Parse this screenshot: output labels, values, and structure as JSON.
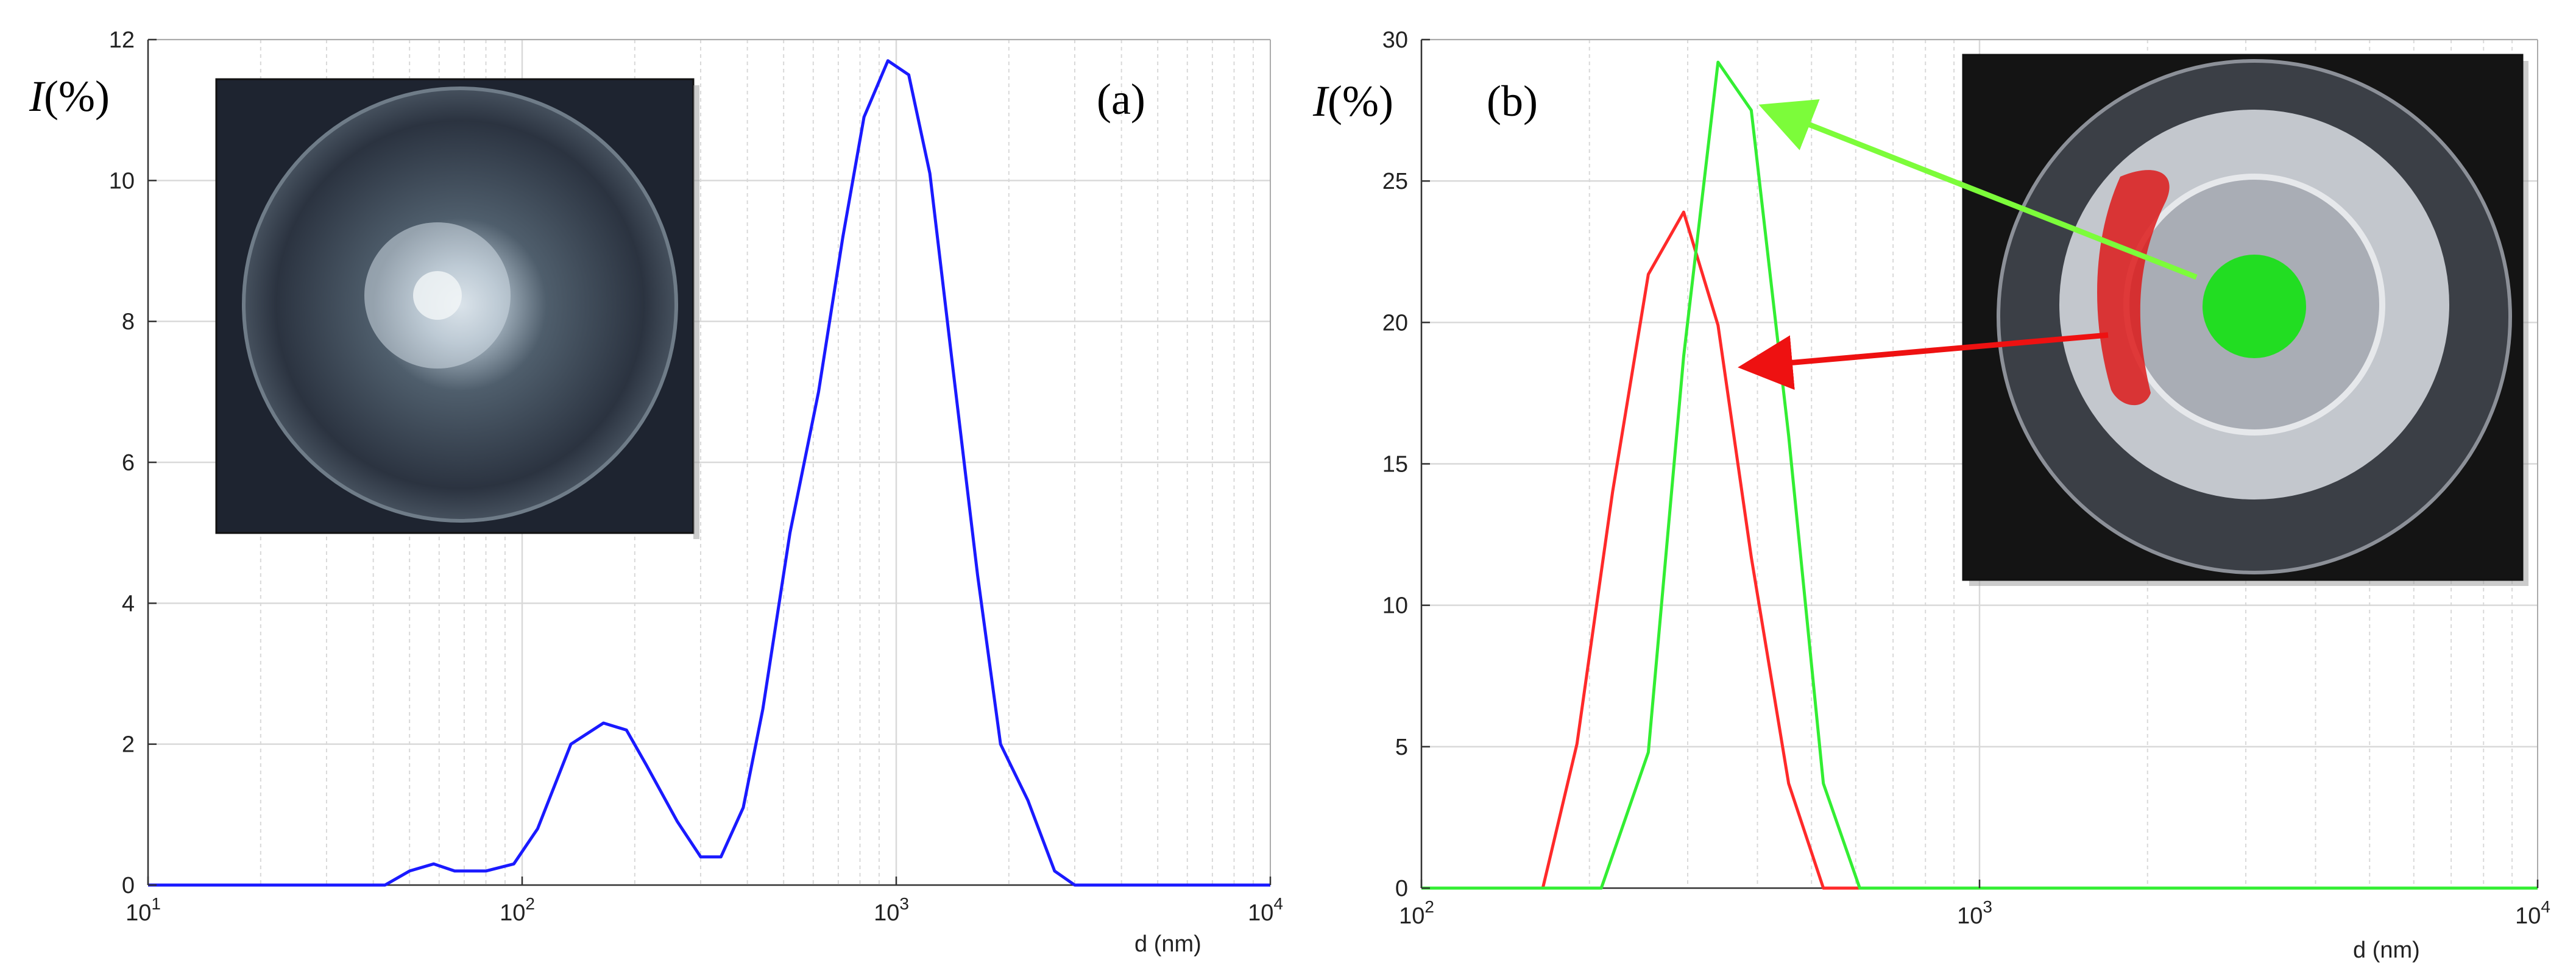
{
  "colors": {
    "series_a": "#1a1aff",
    "series_b_red": "#ff2a2a",
    "series_b_green": "#33ee33",
    "grid": "#d9d9d9",
    "axis": "#333333",
    "photo_background": "#1e2430"
  },
  "chart_data": [
    {
      "type": "line",
      "panel_label": "(a)",
      "ylabel_italic": "I",
      "ylabel_rest": "(%)",
      "xlabel": "d (nm)",
      "x_scale": "log",
      "xlim": [
        10,
        10000
      ],
      "ylim": [
        0,
        12
      ],
      "grid": true,
      "x_ticks": [
        {
          "value": 10,
          "base": "10",
          "exp": "1"
        },
        {
          "value": 100,
          "base": "10",
          "exp": "2"
        },
        {
          "value": 1000,
          "base": "10",
          "exp": "3"
        },
        {
          "value": 10000,
          "base": "10",
          "exp": "4"
        }
      ],
      "y_ticks": [
        {
          "value": 0,
          "label": "0"
        },
        {
          "value": 2,
          "label": "2"
        },
        {
          "value": 4,
          "label": "4"
        },
        {
          "value": 6,
          "label": "6"
        },
        {
          "value": 8,
          "label": "8"
        },
        {
          "value": 10,
          "label": "10"
        },
        {
          "value": 12,
          "label": "12"
        }
      ],
      "inset": "photo of a glass dish with a scattered white deposit",
      "series": [
        {
          "color": "#1a1aff",
          "x": [
            10,
            43,
            50,
            58,
            66,
            80,
            95,
            110,
            135,
            165,
            190,
            215,
            260,
            300,
            340,
            390,
            440,
            520,
            620,
            720,
            820,
            950,
            1080,
            1230,
            1420,
            1650,
            1900,
            2250,
            2650,
            3000,
            10000
          ],
          "y": [
            0,
            0,
            0.2,
            0.3,
            0.2,
            0.2,
            0.3,
            0.8,
            2.0,
            2.3,
            2.2,
            1.7,
            0.9,
            0.4,
            0.4,
            1.1,
            2.5,
            5.0,
            7.0,
            9.2,
            10.9,
            11.7,
            11.5,
            10.1,
            7.3,
            4.4,
            2.0,
            1.2,
            0.2,
            0,
            0
          ]
        }
      ]
    },
    {
      "type": "line",
      "panel_label": "(b)",
      "ylabel_italic": "I",
      "ylabel_rest": "(%)",
      "xlabel": "d (nm)",
      "x_scale": "log",
      "xlim": [
        100,
        10000
      ],
      "ylim": [
        0,
        30
      ],
      "grid": true,
      "x_ticks": [
        {
          "value": 100,
          "base": "10",
          "exp": "2"
        },
        {
          "value": 1000,
          "base": "10",
          "exp": "3"
        },
        {
          "value": 10000,
          "base": "10",
          "exp": "4"
        }
      ],
      "y_ticks": [
        {
          "value": 0,
          "label": "0"
        },
        {
          "value": 5,
          "label": "5"
        },
        {
          "value": 10,
          "label": "10"
        },
        {
          "value": 15,
          "label": "15"
        },
        {
          "value": 20,
          "label": "20"
        },
        {
          "value": 25,
          "label": "25"
        },
        {
          "value": 30,
          "label": "30"
        }
      ],
      "inset": "photo of a glass dish with a white ring deposit, a red edge region and a green centre region",
      "series": [
        {
          "color": "#ff2a2a",
          "x": [
            100,
            165,
            190,
            220,
            255,
            295,
            340,
            390,
            455,
            525,
            10000
          ],
          "y": [
            0,
            0,
            5.1,
            14.0,
            21.7,
            23.9,
            19.9,
            11.7,
            3.7,
            0,
            0
          ]
        },
        {
          "color": "#33ee33",
          "x": [
            100,
            210,
            255,
            295,
            340,
            390,
            455,
            525,
            610,
            10000
          ],
          "y": [
            0,
            0,
            4.8,
            18.8,
            29.2,
            27.5,
            16.0,
            3.7,
            0,
            0
          ]
        }
      ]
    }
  ]
}
